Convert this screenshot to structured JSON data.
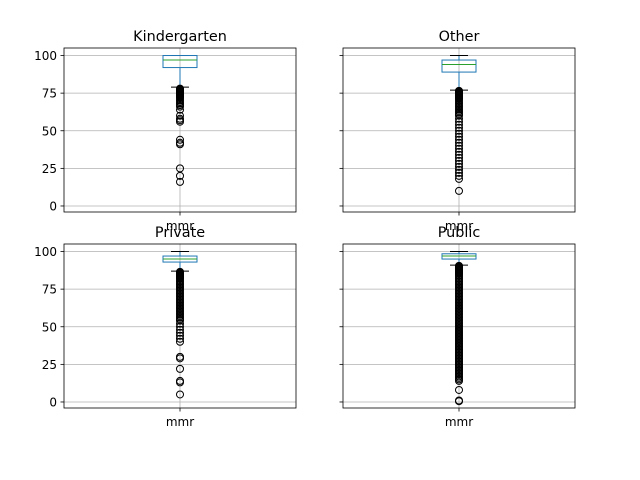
{
  "chart_data": [
    {
      "type": "box",
      "title": "Kindergarten",
      "xlabel": "mmr",
      "ylim": [
        -4,
        105
      ],
      "yticks": [
        0,
        25,
        50,
        75,
        100
      ],
      "grid": true,
      "stats": {
        "whisker_low": 79,
        "q1": 92,
        "median": 97,
        "q3": 100,
        "whisker_high": 100
      },
      "outliers": [
        78,
        77.5,
        77,
        76.5,
        76,
        75.5,
        75,
        74.5,
        74,
        73.5,
        73,
        72.5,
        72,
        71,
        70,
        69,
        68,
        67,
        66,
        64,
        60,
        58,
        57,
        56,
        44,
        42,
        41,
        25,
        20,
        16
      ]
    },
    {
      "type": "box",
      "title": "Other",
      "xlabel": "mmr",
      "ylim": [
        -4,
        105
      ],
      "yticks": [
        0,
        25,
        50,
        75,
        100
      ],
      "grid": true,
      "stats": {
        "whisker_low": 77,
        "q1": 89,
        "median": 94,
        "q3": 97,
        "whisker_high": 100
      },
      "outliers": [
        76.5,
        76,
        75.5,
        75,
        74.5,
        74,
        73.5,
        73,
        72.5,
        72,
        71.5,
        71,
        70,
        69,
        68,
        67,
        66,
        65,
        64,
        63,
        62,
        61,
        60,
        58,
        56,
        54,
        52,
        50,
        48,
        46,
        44,
        42,
        40,
        38,
        36,
        34,
        32,
        30,
        28,
        26,
        24,
        22,
        20,
        18,
        10
      ]
    },
    {
      "type": "box",
      "title": "Private",
      "xlabel": "mmr",
      "ylim": [
        -4,
        105
      ],
      "yticks": [
        0,
        25,
        50,
        75,
        100
      ],
      "grid": true,
      "stats": {
        "whisker_low": 87,
        "q1": 93,
        "median": 95,
        "q3": 97,
        "whisker_high": 100
      },
      "outliers": [
        86.5,
        86,
        85.5,
        85,
        84.5,
        84,
        83.5,
        83,
        82.5,
        82,
        81,
        80,
        79,
        78,
        77,
        76,
        75,
        74,
        73,
        72,
        71,
        70,
        69,
        68,
        67,
        66,
        65,
        64,
        63,
        62,
        61,
        60,
        59,
        58,
        57,
        56,
        55,
        54,
        52,
        50,
        48,
        46,
        44,
        42,
        40,
        30,
        29,
        22,
        14,
        13,
        5
      ]
    },
    {
      "type": "box",
      "title": "Public",
      "xlabel": "mmr",
      "ylim": [
        -4,
        105
      ],
      "yticks": [
        0,
        25,
        50,
        75,
        100
      ],
      "grid": true,
      "stats": {
        "whisker_low": 91,
        "q1": 95,
        "median": 97,
        "q3": 98.5,
        "whisker_high": 100
      },
      "outliers": [
        90.5,
        90,
        89.5,
        89,
        88.5,
        88,
        87.5,
        87,
        86.5,
        86,
        85.5,
        85,
        84,
        83,
        82,
        81,
        80,
        79,
        78,
        77,
        76,
        75,
        74,
        73,
        72,
        71,
        70,
        69,
        68,
        67,
        66,
        65,
        64,
        63,
        62,
        61,
        60,
        59,
        58,
        57,
        56,
        55,
        54,
        53,
        52,
        51,
        50,
        49,
        48,
        47,
        46,
        45,
        44,
        43,
        42,
        41,
        40,
        39,
        38,
        37,
        36,
        35,
        34,
        33,
        32,
        31,
        30,
        29,
        28,
        27,
        26,
        25,
        24,
        23,
        22,
        21,
        20,
        19,
        18,
        17,
        16,
        15,
        14,
        8,
        1,
        0.5
      ]
    }
  ]
}
